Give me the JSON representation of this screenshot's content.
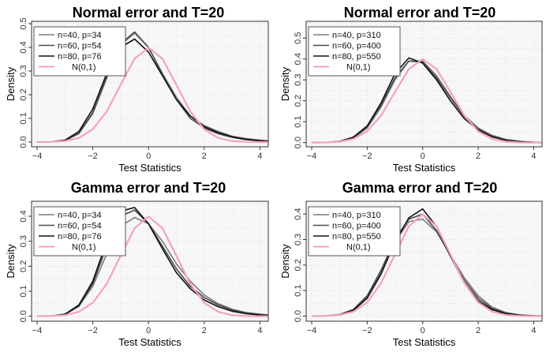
{
  "chart_data": [
    {
      "type": "line",
      "title": "Normal error and T=20",
      "xlabel": "Test Statistics",
      "ylabel": "Density",
      "xlim": [
        -4.2,
        4.3
      ],
      "ylim": [
        -0.02,
        0.51
      ],
      "xticks": [
        -4,
        -2,
        0,
        2,
        4
      ],
      "xtick_labels": [
        "−4",
        "−2",
        "0",
        "2",
        "4"
      ],
      "yticks": [
        0.0,
        0.1,
        0.2,
        0.3,
        0.4,
        0.5
      ],
      "ytick_labels": [
        "0.0",
        "0.1",
        "0.2",
        "0.3",
        "0.4",
        "0.5"
      ],
      "grid": true,
      "legend_position": "top-left",
      "series": [
        {
          "name": "n=40, p=34",
          "color": "#7a7a7a",
          "x": [
            -4,
            -3.5,
            -3,
            -2.5,
            -2,
            -1.5,
            -1,
            -0.5,
            0,
            0.5,
            1,
            1.5,
            2,
            2.5,
            3,
            3.5,
            4,
            4.3
          ],
          "y": [
            0,
            0.001,
            0.006,
            0.035,
            0.12,
            0.27,
            0.41,
            0.46,
            0.4,
            0.29,
            0.19,
            0.11,
            0.07,
            0.045,
            0.025,
            0.015,
            0.008,
            0.005
          ]
        },
        {
          "name": "n=60, p=54",
          "color": "#4a4a4a",
          "x": [
            -4,
            -3.5,
            -3,
            -2.5,
            -2,
            -1.5,
            -1,
            -0.5,
            0,
            0.5,
            1,
            1.5,
            2,
            2.5,
            3,
            3.5,
            4,
            4.3
          ],
          "y": [
            0,
            0.001,
            0.007,
            0.038,
            0.125,
            0.275,
            0.415,
            0.465,
            0.4,
            0.285,
            0.18,
            0.1,
            0.06,
            0.035,
            0.02,
            0.01,
            0.005,
            0.003
          ]
        },
        {
          "name": "n=80, p=76",
          "color": "#111111",
          "x": [
            -4,
            -3.5,
            -3,
            -2.5,
            -2,
            -1.5,
            -1,
            -0.5,
            0,
            0.5,
            1,
            1.5,
            2,
            2.5,
            3,
            3.5,
            4,
            4.3
          ],
          "y": [
            0,
            0.001,
            0.008,
            0.045,
            0.14,
            0.29,
            0.4,
            0.435,
            0.38,
            0.28,
            0.18,
            0.11,
            0.065,
            0.04,
            0.022,
            0.012,
            0.006,
            0.004
          ]
        },
        {
          "name": "N(0,1)",
          "color": "#f4a3b7",
          "x": [
            -4,
            -3.5,
            -3,
            -2.5,
            -2,
            -1.5,
            -1,
            -0.5,
            0,
            0.5,
            1,
            1.5,
            2,
            2.5,
            3,
            3.5,
            4,
            4.3
          ],
          "y": [
            0.0001,
            0.0009,
            0.0044,
            0.0175,
            0.054,
            0.1295,
            0.242,
            0.352,
            0.399,
            0.352,
            0.242,
            0.1295,
            0.054,
            0.0175,
            0.0044,
            0.0009,
            0.0001,
            4e-05
          ]
        }
      ]
    },
    {
      "type": "line",
      "title": "Normal error and T=20",
      "xlabel": "Test Statistics",
      "ylabel": "Density",
      "xlim": [
        -4.2,
        4.3
      ],
      "ylim": [
        -0.02,
        0.58
      ],
      "xticks": [
        -4,
        -2,
        0,
        2,
        4
      ],
      "xtick_labels": [
        "−4",
        "−2",
        "0",
        "2",
        "4"
      ],
      "yticks": [
        0.0,
        0.1,
        0.2,
        0.3,
        0.4,
        0.5
      ],
      "ytick_labels": [
        "0.0",
        "0.1",
        "0.2",
        "0.3",
        "0.4",
        "0.5"
      ],
      "grid": true,
      "legend_position": "top-left",
      "series": [
        {
          "name": "n=40, p=310",
          "color": "#7a7a7a",
          "x": [
            -4,
            -3.5,
            -3,
            -2.5,
            -2,
            -1.5,
            -1,
            -0.5,
            0,
            0.5,
            1,
            1.5,
            2,
            2.5,
            3,
            3.5,
            4,
            4.3
          ],
          "y": [
            0,
            0.001,
            0.005,
            0.02,
            0.07,
            0.17,
            0.3,
            0.39,
            0.39,
            0.32,
            0.22,
            0.13,
            0.07,
            0.035,
            0.015,
            0.006,
            0.002,
            0.001
          ]
        },
        {
          "name": "n=60, p=400",
          "color": "#4a4a4a",
          "x": [
            -4,
            -3.5,
            -3,
            -2.5,
            -2,
            -1.5,
            -1,
            -0.5,
            0,
            0.5,
            1,
            1.5,
            2,
            2.5,
            3,
            3.5,
            4,
            4.3
          ],
          "y": [
            0,
            0.001,
            0.006,
            0.024,
            0.075,
            0.18,
            0.31,
            0.39,
            0.385,
            0.31,
            0.215,
            0.125,
            0.065,
            0.03,
            0.012,
            0.005,
            0.002,
            0.001
          ]
        },
        {
          "name": "n=80, p=550",
          "color": "#111111",
          "x": [
            -4,
            -3.5,
            -3,
            -2.5,
            -2,
            -1.5,
            -1,
            -0.5,
            0,
            0.5,
            1,
            1.5,
            2,
            2.5,
            3,
            3.5,
            4,
            4.3
          ],
          "y": [
            0,
            0.001,
            0.006,
            0.026,
            0.08,
            0.19,
            0.33,
            0.405,
            0.38,
            0.3,
            0.2,
            0.115,
            0.06,
            0.028,
            0.011,
            0.004,
            0.001,
            0.0005
          ]
        },
        {
          "name": "N(0,1)",
          "color": "#f4a3b7",
          "x": [
            -4,
            -3.5,
            -3,
            -2.5,
            -2,
            -1.5,
            -1,
            -0.5,
            0,
            0.5,
            1,
            1.5,
            2,
            2.5,
            3,
            3.5,
            4,
            4.3
          ],
          "y": [
            0.0001,
            0.0009,
            0.0044,
            0.0175,
            0.054,
            0.1295,
            0.242,
            0.352,
            0.399,
            0.352,
            0.242,
            0.1295,
            0.054,
            0.0175,
            0.0044,
            0.0009,
            0.0001,
            4e-05
          ]
        }
      ]
    },
    {
      "type": "line",
      "title": "Gamma error and T=20",
      "xlabel": "Test Statistics",
      "ylabel": "Density",
      "xlim": [
        -4.2,
        4.3
      ],
      "ylim": [
        -0.02,
        0.46
      ],
      "xticks": [
        -4,
        -2,
        0,
        2,
        4
      ],
      "xtick_labels": [
        "−4",
        "−2",
        "0",
        "2",
        "4"
      ],
      "yticks": [
        0.0,
        0.1,
        0.2,
        0.3,
        0.4
      ],
      "ytick_labels": [
        "0.0",
        "0.1",
        "0.2",
        "0.3",
        "0.4"
      ],
      "grid": true,
      "legend_position": "top-left",
      "series": [
        {
          "name": "n=40, p=34",
          "color": "#7a7a7a",
          "x": [
            -4,
            -3.5,
            -3,
            -2.5,
            -2,
            -1.5,
            -1,
            -0.5,
            0,
            0.5,
            1,
            1.5,
            2,
            2.5,
            3,
            3.5,
            4,
            4.3
          ],
          "y": [
            0,
            0.001,
            0.008,
            0.04,
            0.12,
            0.25,
            0.36,
            0.395,
            0.37,
            0.3,
            0.21,
            0.14,
            0.085,
            0.05,
            0.028,
            0.015,
            0.008,
            0.005
          ]
        },
        {
          "name": "n=60, p=54",
          "color": "#4a4a4a",
          "x": [
            -4,
            -3.5,
            -3,
            -2.5,
            -2,
            -1.5,
            -1,
            -0.5,
            0,
            0.5,
            1,
            1.5,
            2,
            2.5,
            3,
            3.5,
            4,
            4.3
          ],
          "y": [
            0,
            0.001,
            0.007,
            0.04,
            0.13,
            0.28,
            0.4,
            0.425,
            0.37,
            0.28,
            0.19,
            0.12,
            0.075,
            0.045,
            0.025,
            0.013,
            0.007,
            0.004
          ]
        },
        {
          "name": "n=80, p=76",
          "color": "#111111",
          "x": [
            -4,
            -3.5,
            -3,
            -2.5,
            -2,
            -1.5,
            -1,
            -0.5,
            0,
            0.5,
            1,
            1.5,
            2,
            2.5,
            3,
            3.5,
            4,
            4.3
          ],
          "y": [
            0,
            0.001,
            0.008,
            0.045,
            0.14,
            0.3,
            0.42,
            0.435,
            0.37,
            0.27,
            0.175,
            0.11,
            0.065,
            0.038,
            0.02,
            0.01,
            0.005,
            0.003
          ]
        },
        {
          "name": "N(0,1)",
          "color": "#f4a3b7",
          "x": [
            -4,
            -3.5,
            -3,
            -2.5,
            -2,
            -1.5,
            -1,
            -0.5,
            0,
            0.5,
            1,
            1.5,
            2,
            2.5,
            3,
            3.5,
            4,
            4.3
          ],
          "y": [
            0.0001,
            0.0009,
            0.0044,
            0.0175,
            0.054,
            0.1295,
            0.242,
            0.352,
            0.399,
            0.352,
            0.242,
            0.1295,
            0.054,
            0.0175,
            0.0044,
            0.0009,
            0.0001,
            4e-05
          ]
        }
      ]
    },
    {
      "type": "line",
      "title": "Gamma error and T=20",
      "xlabel": "Test Statistics",
      "ylabel": "Density",
      "xlim": [
        -4.2,
        4.3
      ],
      "ylim": [
        -0.02,
        0.45
      ],
      "xticks": [
        -4,
        -2,
        0,
        2,
        4
      ],
      "xtick_labels": [
        "−4",
        "−2",
        "0",
        "2",
        "4"
      ],
      "yticks": [
        0.0,
        0.1,
        0.2,
        0.3,
        0.4
      ],
      "ytick_labels": [
        "0.0",
        "0.1",
        "0.2",
        "0.3",
        "0.4"
      ],
      "grid": true,
      "legend_position": "top-left",
      "series": [
        {
          "name": "n=40, p=310",
          "color": "#7a7a7a",
          "x": [
            -4,
            -3.5,
            -3,
            -2.5,
            -2,
            -1.5,
            -1,
            -0.5,
            0,
            0.5,
            1,
            1.5,
            2,
            2.5,
            3,
            3.5,
            4,
            4.3
          ],
          "y": [
            0,
            0.001,
            0.006,
            0.025,
            0.075,
            0.17,
            0.29,
            0.37,
            0.38,
            0.33,
            0.24,
            0.15,
            0.08,
            0.035,
            0.014,
            0.005,
            0.002,
            0.001
          ]
        },
        {
          "name": "n=60, p=400",
          "color": "#4a4a4a",
          "x": [
            -4,
            -3.5,
            -3,
            -2.5,
            -2,
            -1.5,
            -1,
            -0.5,
            0,
            0.5,
            1,
            1.5,
            2,
            2.5,
            3,
            3.5,
            4,
            4.3
          ],
          "y": [
            0,
            0.001,
            0.006,
            0.026,
            0.08,
            0.18,
            0.3,
            0.38,
            0.4,
            0.335,
            0.235,
            0.14,
            0.07,
            0.03,
            0.012,
            0.004,
            0.0015,
            0.001
          ]
        },
        {
          "name": "n=80, p=550",
          "color": "#111111",
          "x": [
            -4,
            -3.5,
            -3,
            -2.5,
            -2,
            -1.5,
            -1,
            -0.5,
            0,
            0.5,
            1,
            1.5,
            2,
            2.5,
            3,
            3.5,
            4,
            4.3
          ],
          "y": [
            0,
            0.001,
            0.005,
            0.022,
            0.07,
            0.165,
            0.29,
            0.385,
            0.42,
            0.35,
            0.235,
            0.13,
            0.06,
            0.025,
            0.009,
            0.003,
            0.001,
            0.0005
          ]
        },
        {
          "name": "N(0,1)",
          "color": "#f4a3b7",
          "x": [
            -4,
            -3.5,
            -3,
            -2.5,
            -2,
            -1.5,
            -1,
            -0.5,
            0,
            0.5,
            1,
            1.5,
            2,
            2.5,
            3,
            3.5,
            4,
            4.3
          ],
          "y": [
            0.0001,
            0.0009,
            0.0044,
            0.0175,
            0.054,
            0.1295,
            0.242,
            0.352,
            0.399,
            0.352,
            0.242,
            0.1295,
            0.054,
            0.0175,
            0.0044,
            0.0009,
            0.0001,
            4e-05
          ]
        }
      ]
    }
  ]
}
